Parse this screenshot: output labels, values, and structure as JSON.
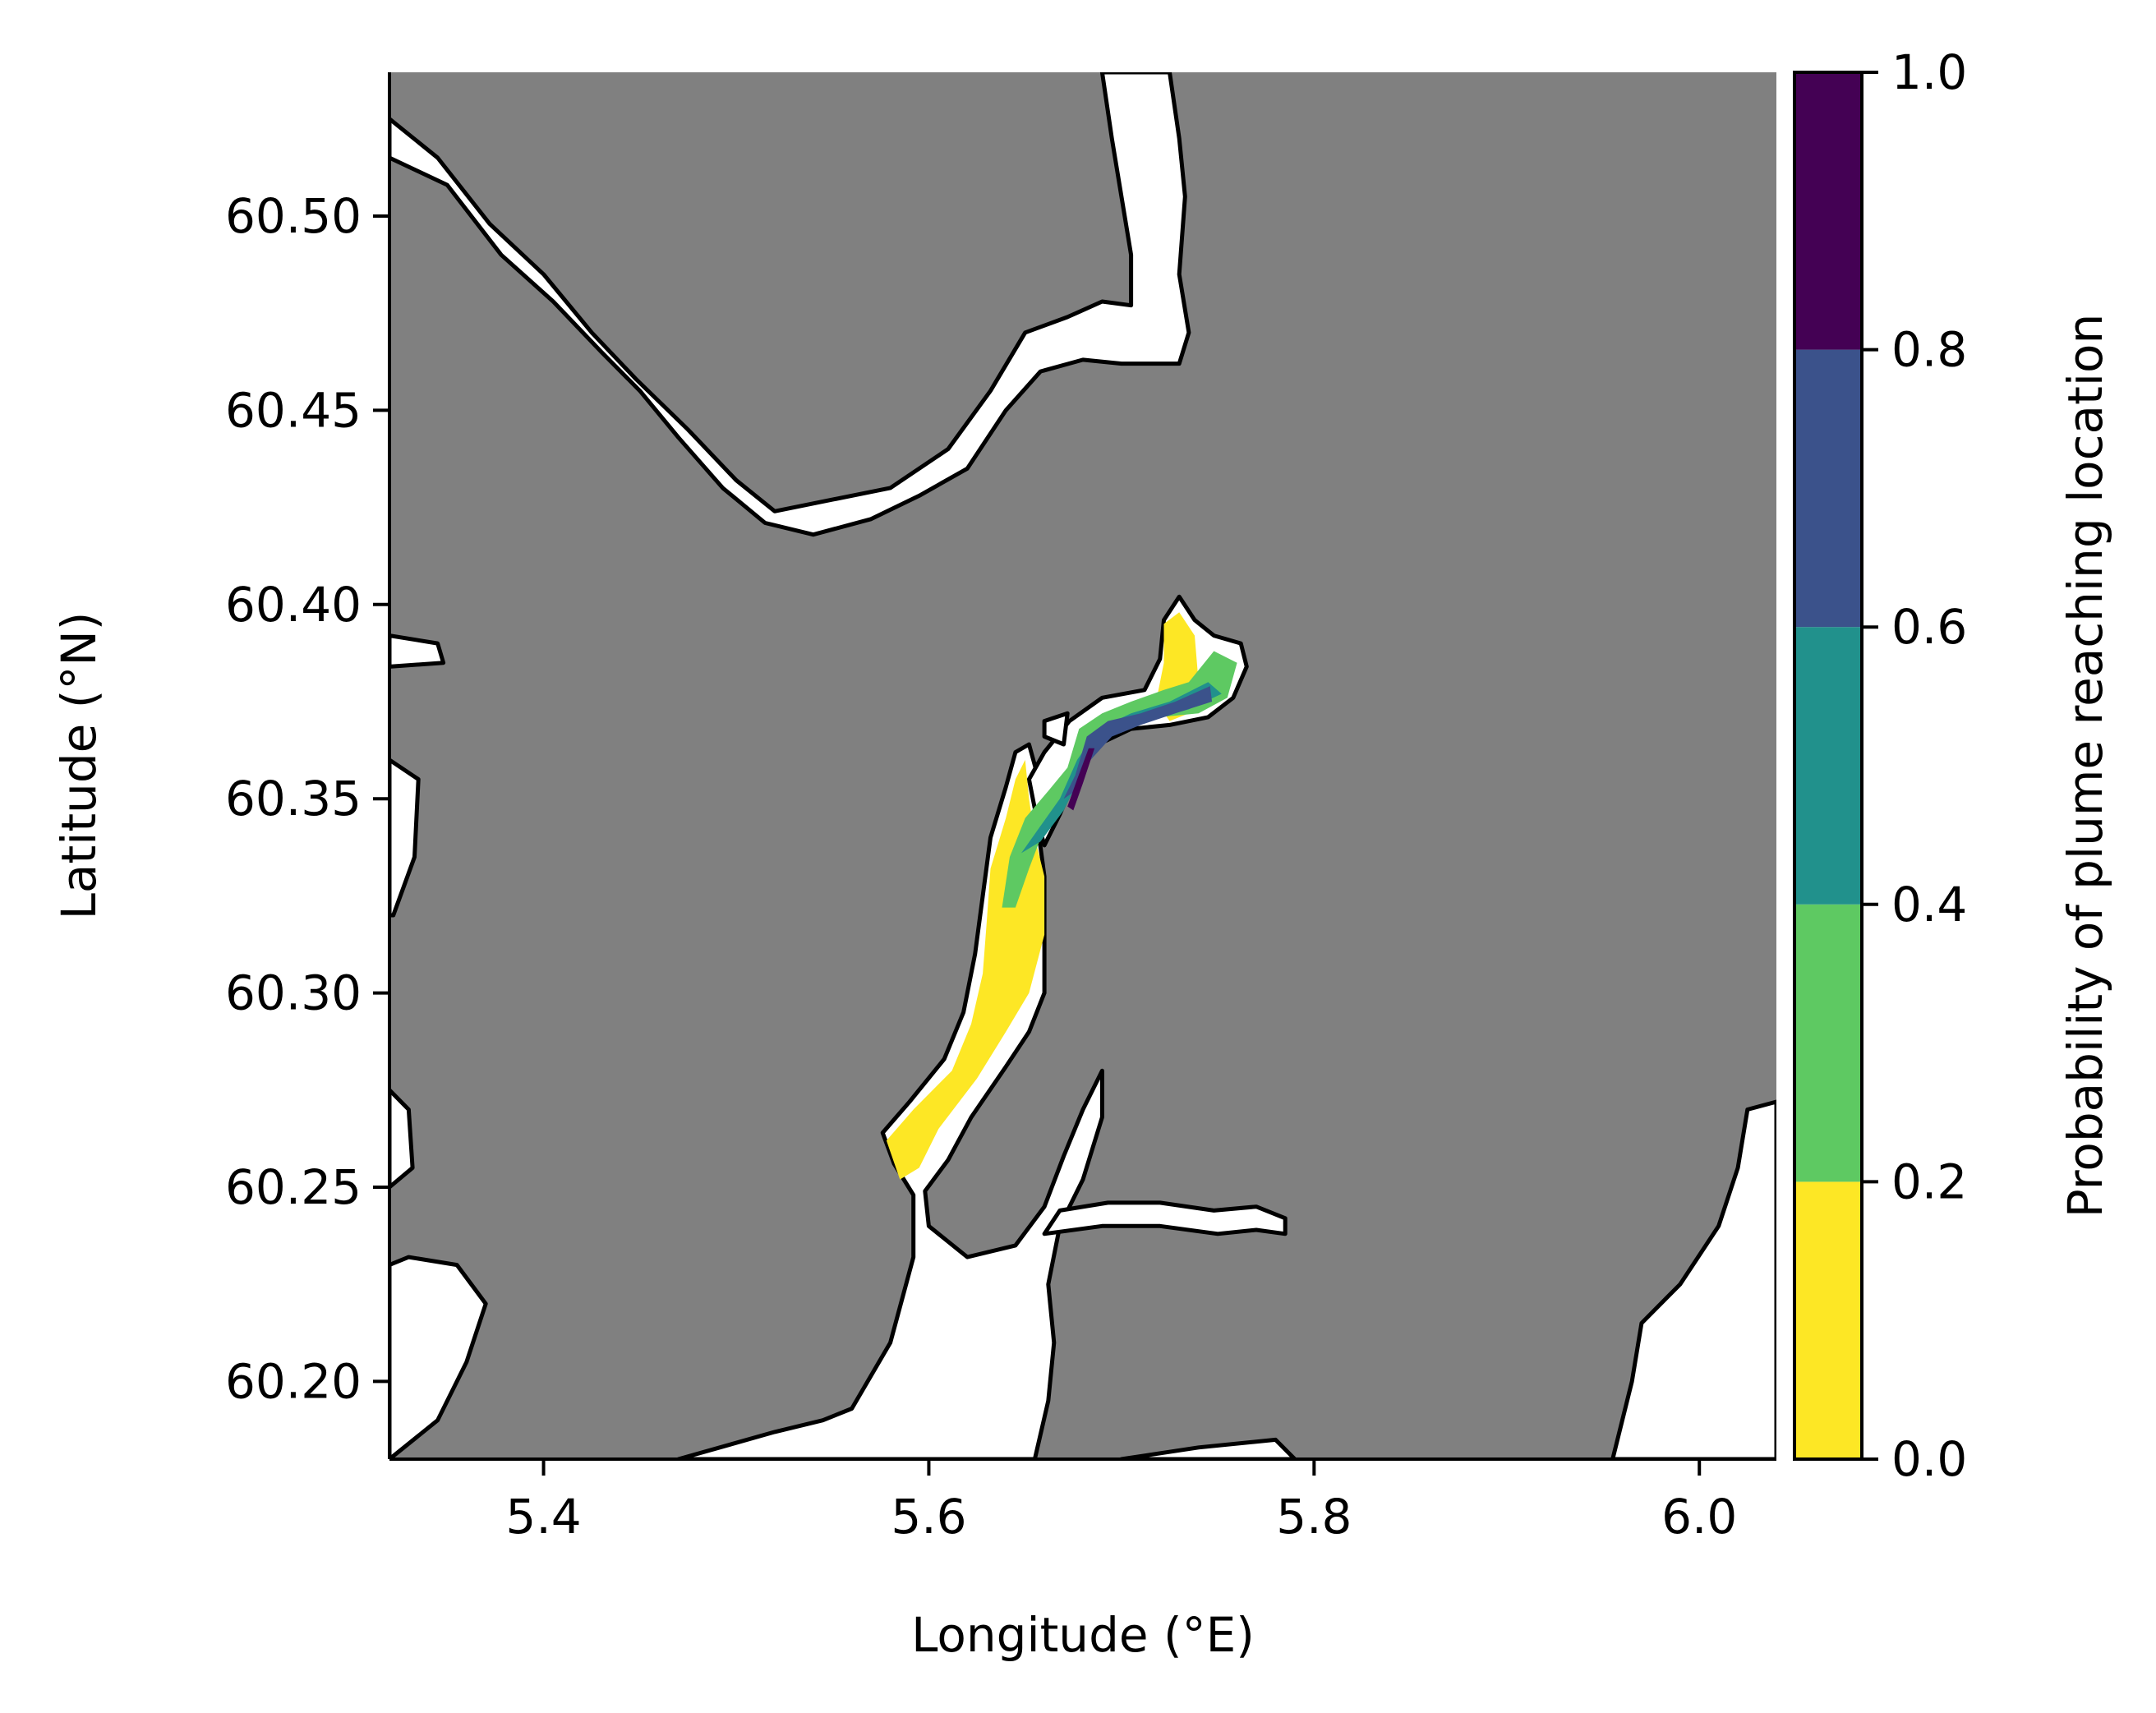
{
  "chart_data": {
    "type": "heatmap",
    "subtype": "map",
    "xlabel": "Longitude (°E)",
    "ylabel": "Latitude (°N)",
    "xlim": [
      5.32,
      6.04
    ],
    "ylim": [
      60.18,
      60.537
    ],
    "x_ticks": [
      5.4,
      5.6,
      5.8,
      6.0
    ],
    "x_tick_labels": [
      "5.4",
      "5.6",
      "5.8",
      "6.0"
    ],
    "y_ticks": [
      60.2,
      60.25,
      60.3,
      60.35,
      60.4,
      60.45,
      60.5
    ],
    "y_tick_labels": [
      "60.20",
      "60.25",
      "60.30",
      "60.35",
      "60.40",
      "60.45",
      "60.50"
    ],
    "land_color": "#808080",
    "water_color": "#ffffff",
    "coastline_color": "#000000",
    "colorbar": {
      "label": "Probability of plume reaching location",
      "range": [
        0.0,
        1.0
      ],
      "ticks": [
        0.0,
        0.2,
        0.4,
        0.6,
        0.8,
        1.0
      ],
      "tick_labels": [
        "0.0",
        "0.2",
        "0.4",
        "0.6",
        "0.8",
        "1.0"
      ],
      "bins": [
        {
          "from": 0.0,
          "to": 0.2,
          "color": "#fde725"
        },
        {
          "from": 0.2,
          "to": 0.4,
          "color": "#5ec962"
        },
        {
          "from": 0.4,
          "to": 0.6,
          "color": "#21918c"
        },
        {
          "from": 0.6,
          "to": 0.8,
          "color": "#3b528b"
        },
        {
          "from": 0.8,
          "to": 1.0,
          "color": "#440154"
        }
      ]
    },
    "plume_regions": [
      {
        "class": "0.0-0.2",
        "color": "#fde725",
        "lonlat": [
          [
            5.585,
            60.252
          ],
          [
            5.578,
            60.262
          ],
          [
            5.592,
            60.27
          ],
          [
            5.612,
            60.28
          ],
          [
            5.622,
            60.292
          ],
          [
            5.628,
            60.305
          ],
          [
            5.63,
            60.318
          ],
          [
            5.632,
            60.332
          ],
          [
            5.64,
            60.345
          ],
          [
            5.645,
            60.355
          ],
          [
            5.65,
            60.36
          ],
          [
            5.652,
            60.35
          ],
          [
            5.655,
            60.34
          ],
          [
            5.66,
            60.33
          ],
          [
            5.66,
            60.315
          ],
          [
            5.652,
            60.3
          ],
          [
            5.64,
            60.29
          ],
          [
            5.625,
            60.278
          ],
          [
            5.605,
            60.265
          ],
          [
            5.595,
            60.255
          ]
        ]
      },
      {
        "class": "0.0-0.2",
        "color": "#fde725",
        "lonlat": [
          [
            5.718,
            60.375
          ],
          [
            5.722,
            60.385
          ],
          [
            5.722,
            60.395
          ],
          [
            5.73,
            60.398
          ],
          [
            5.738,
            60.392
          ],
          [
            5.74,
            60.38
          ],
          [
            5.735,
            60.372
          ],
          [
            5.725,
            60.37
          ]
        ]
      },
      {
        "class": "0.2-0.4",
        "color": "#5ec962",
        "lonlat": [
          [
            5.638,
            60.322
          ],
          [
            5.642,
            60.335
          ],
          [
            5.65,
            60.345
          ],
          [
            5.662,
            60.352
          ],
          [
            5.672,
            60.358
          ],
          [
            5.678,
            60.368
          ],
          [
            5.69,
            60.372
          ],
          [
            5.705,
            60.375
          ],
          [
            5.722,
            60.378
          ],
          [
            5.735,
            60.38
          ],
          [
            5.748,
            60.388
          ],
          [
            5.76,
            60.385
          ],
          [
            5.755,
            60.376
          ],
          [
            5.74,
            60.372
          ],
          [
            5.72,
            60.371
          ],
          [
            5.7,
            60.369
          ],
          [
            5.685,
            60.365
          ],
          [
            5.675,
            60.355
          ],
          [
            5.662,
            60.345
          ],
          [
            5.652,
            60.332
          ],
          [
            5.645,
            60.322
          ]
        ]
      },
      {
        "class": "0.4-0.6",
        "color": "#21918c",
        "lonlat": [
          [
            5.648,
            60.336
          ],
          [
            5.658,
            60.343
          ],
          [
            5.668,
            60.35
          ],
          [
            5.677,
            60.36
          ],
          [
            5.688,
            60.368
          ],
          [
            5.705,
            60.372
          ],
          [
            5.725,
            60.375
          ],
          [
            5.745,
            60.38
          ],
          [
            5.752,
            60.377
          ],
          [
            5.735,
            60.373
          ],
          [
            5.712,
            60.37
          ],
          [
            5.692,
            60.366
          ],
          [
            5.68,
            60.357
          ],
          [
            5.67,
            60.347
          ],
          [
            5.658,
            60.339
          ]
        ]
      },
      {
        "class": "0.6-0.8",
        "color": "#3b528b",
        "lonlat": [
          [
            5.67,
            60.35
          ],
          [
            5.676,
            60.356
          ],
          [
            5.682,
            60.366
          ],
          [
            5.693,
            60.37
          ],
          [
            5.71,
            60.372
          ],
          [
            5.728,
            60.375
          ],
          [
            5.746,
            60.379
          ],
          [
            5.747,
            60.375
          ],
          [
            5.728,
            60.372
          ],
          [
            5.71,
            60.369
          ],
          [
            5.695,
            60.366
          ],
          [
            5.684,
            60.36
          ],
          [
            5.676,
            60.352
          ]
        ]
      },
      {
        "class": "0.8-1.0",
        "color": "#440154",
        "lonlat": [
          [
            5.672,
            60.348
          ],
          [
            5.677,
            60.355
          ],
          [
            5.683,
            60.363
          ],
          [
            5.686,
            60.363
          ],
          [
            5.68,
            60.354
          ],
          [
            5.675,
            60.347
          ]
        ]
      }
    ],
    "water_regions": [
      {
        "name": "main-fjord-south",
        "lonlat": [
          [
            5.47,
            60.18
          ],
          [
            5.52,
            60.187
          ],
          [
            5.545,
            60.19
          ],
          [
            5.56,
            60.193
          ],
          [
            5.58,
            60.21
          ],
          [
            5.592,
            60.232
          ],
          [
            5.592,
            60.248
          ],
          [
            5.582,
            60.256
          ],
          [
            5.576,
            60.264
          ],
          [
            5.59,
            60.272
          ],
          [
            5.608,
            60.283
          ],
          [
            5.618,
            60.295
          ],
          [
            5.624,
            60.31
          ],
          [
            5.628,
            60.325
          ],
          [
            5.632,
            60.34
          ],
          [
            5.64,
            60.353
          ],
          [
            5.645,
            60.362
          ],
          [
            5.652,
            60.364
          ],
          [
            5.657,
            60.355
          ],
          [
            5.656,
            60.345
          ],
          [
            5.66,
            60.33
          ],
          [
            5.66,
            60.317
          ],
          [
            5.66,
            60.3
          ],
          [
            5.652,
            60.29
          ],
          [
            5.64,
            60.281
          ],
          [
            5.622,
            60.268
          ],
          [
            5.61,
            60.257
          ],
          [
            5.598,
            60.249
          ],
          [
            5.6,
            60.24
          ],
          [
            5.62,
            60.232
          ],
          [
            5.645,
            60.235
          ],
          [
            5.66,
            60.245
          ],
          [
            5.67,
            60.258
          ],
          [
            5.68,
            60.27
          ],
          [
            5.69,
            60.28
          ],
          [
            5.69,
            60.268
          ],
          [
            5.68,
            60.252
          ],
          [
            5.668,
            60.24
          ],
          [
            5.662,
            60.225
          ],
          [
            5.665,
            60.21
          ],
          [
            5.662,
            60.195
          ],
          [
            5.655,
            60.18
          ]
        ]
      },
      {
        "name": "east-branch",
        "lonlat": [
          [
            5.66,
            60.238
          ],
          [
            5.69,
            60.24
          ],
          [
            5.72,
            60.24
          ],
          [
            5.75,
            60.238
          ],
          [
            5.77,
            60.239
          ],
          [
            5.785,
            60.238
          ],
          [
            5.785,
            60.242
          ],
          [
            5.77,
            60.245
          ],
          [
            5.748,
            60.244
          ],
          [
            5.72,
            60.246
          ],
          [
            5.693,
            60.246
          ],
          [
            5.668,
            60.244
          ]
        ]
      },
      {
        "name": "upper-fjord-northeast",
        "lonlat": [
          [
            5.652,
            60.355
          ],
          [
            5.66,
            60.362
          ],
          [
            5.673,
            60.37
          ],
          [
            5.69,
            60.376
          ],
          [
            5.712,
            60.378
          ],
          [
            5.72,
            60.386
          ],
          [
            5.722,
            60.396
          ],
          [
            5.73,
            60.402
          ],
          [
            5.738,
            60.396
          ],
          [
            5.748,
            60.392
          ],
          [
            5.762,
            60.39
          ],
          [
            5.765,
            60.384
          ],
          [
            5.758,
            60.376
          ],
          [
            5.745,
            60.371
          ],
          [
            5.725,
            60.369
          ],
          [
            5.705,
            60.368
          ],
          [
            5.688,
            60.364
          ],
          [
            5.676,
            60.355
          ],
          [
            5.668,
            60.346
          ],
          [
            5.66,
            60.338
          ],
          [
            5.656,
            60.345
          ]
        ]
      },
      {
        "name": "north-fjord",
        "lonlat": [
          [
            5.32,
            60.525
          ],
          [
            5.345,
            60.515
          ],
          [
            5.372,
            60.498
          ],
          [
            5.4,
            60.485
          ],
          [
            5.425,
            60.47
          ],
          [
            5.448,
            60.458
          ],
          [
            5.475,
            60.445
          ],
          [
            5.5,
            60.432
          ],
          [
            5.52,
            60.424
          ],
          [
            5.55,
            60.427
          ],
          [
            5.58,
            60.43
          ],
          [
            5.61,
            60.44
          ],
          [
            5.632,
            60.455
          ],
          [
            5.65,
            60.47
          ],
          [
            5.672,
            60.474
          ],
          [
            5.69,
            60.478
          ],
          [
            5.705,
            60.477
          ],
          [
            5.705,
            60.49
          ],
          [
            5.7,
            60.505
          ],
          [
            5.695,
            60.52
          ],
          [
            5.69,
            60.537
          ],
          [
            5.725,
            60.537
          ],
          [
            5.73,
            60.52
          ],
          [
            5.733,
            60.505
          ],
          [
            5.73,
            60.485
          ],
          [
            5.735,
            60.47
          ],
          [
            5.73,
            60.462
          ],
          [
            5.7,
            60.462
          ],
          [
            5.68,
            60.463
          ],
          [
            5.658,
            60.46
          ],
          [
            5.64,
            60.45
          ],
          [
            5.62,
            60.435
          ],
          [
            5.595,
            60.428
          ],
          [
            5.57,
            60.422
          ],
          [
            5.54,
            60.418
          ],
          [
            5.515,
            60.421
          ],
          [
            5.493,
            60.43
          ],
          [
            5.47,
            60.443
          ],
          [
            5.45,
            60.455
          ],
          [
            5.43,
            60.465
          ],
          [
            5.405,
            60.478
          ],
          [
            5.378,
            60.49
          ],
          [
            5.35,
            60.508
          ],
          [
            5.32,
            60.515
          ]
        ]
      },
      {
        "name": "southeast-fjord",
        "lonlat": [
          [
            5.955,
            60.18
          ],
          [
            5.965,
            60.2
          ],
          [
            5.97,
            60.215
          ],
          [
            5.99,
            60.225
          ],
          [
            6.01,
            60.24
          ],
          [
            6.02,
            60.255
          ],
          [
            6.025,
            60.27
          ],
          [
            6.04,
            60.272
          ],
          [
            6.04,
            60.18
          ]
        ]
      },
      {
        "name": "south-branch",
        "lonlat": [
          [
            5.7,
            60.18
          ],
          [
            5.74,
            60.183
          ],
          [
            5.78,
            60.185
          ],
          [
            5.79,
            60.18
          ]
        ]
      },
      {
        "name": "west-edge-waters",
        "lonlat": [
          [
            5.32,
            60.18
          ],
          [
            5.345,
            60.19
          ],
          [
            5.36,
            60.205
          ],
          [
            5.37,
            60.22
          ],
          [
            5.355,
            60.23
          ],
          [
            5.33,
            60.232
          ],
          [
            5.32,
            60.23
          ]
        ]
      },
      {
        "name": "west-inlet-1",
        "lonlat": [
          [
            5.32,
            60.392
          ],
          [
            5.345,
            60.39
          ],
          [
            5.348,
            60.385
          ],
          [
            5.32,
            60.384
          ]
        ]
      },
      {
        "name": "west-inlet-2",
        "lonlat": [
          [
            5.32,
            60.36
          ],
          [
            5.335,
            60.355
          ],
          [
            5.333,
            60.335
          ],
          [
            5.322,
            60.32
          ],
          [
            5.32,
            60.32
          ]
        ]
      },
      {
        "name": "west-inlet-3",
        "lonlat": [
          [
            5.32,
            60.275
          ],
          [
            5.33,
            60.27
          ],
          [
            5.332,
            60.255
          ],
          [
            5.32,
            60.25
          ]
        ]
      },
      {
        "name": "small-lake-north",
        "lonlat": [
          [
            5.66,
            60.37
          ],
          [
            5.672,
            60.372
          ],
          [
            5.67,
            60.364
          ],
          [
            5.66,
            60.366
          ]
        ]
      }
    ]
  }
}
